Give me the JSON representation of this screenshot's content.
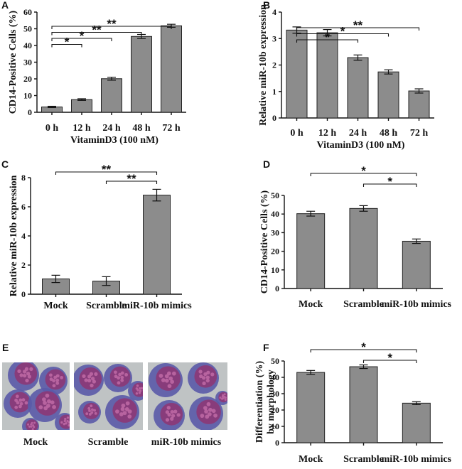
{
  "chart_data": [
    {
      "panel": "A",
      "type": "bar",
      "categories": [
        "0 h",
        "12 h",
        "24 h",
        "48 h",
        "72 h"
      ],
      "values": [
        3.2,
        7.6,
        20.1,
        45.4,
        51.8
      ],
      "errors": [
        0.4,
        0.5,
        0.9,
        1.2,
        0.9
      ],
      "ylabel": "CD14-Positive Cells (%)",
      "xlabel": "VitaminD3 (100 nM)",
      "ylim": [
        0,
        60
      ],
      "yticks": [
        0,
        10,
        20,
        30,
        40,
        50,
        60
      ],
      "annotations": [
        {
          "from": 0,
          "to": 1,
          "label": "*"
        },
        {
          "from": 0,
          "to": 2,
          "label": "*"
        },
        {
          "from": 0,
          "to": 3,
          "label": "**"
        },
        {
          "from": 0,
          "to": 4,
          "label": "**"
        }
      ]
    },
    {
      "panel": "B",
      "type": "bar",
      "categories": [
        "0 h",
        "12 h",
        "24 h",
        "48 h",
        "72 h"
      ],
      "values": [
        3.32,
        3.22,
        2.28,
        1.74,
        1.02
      ],
      "errors": [
        0.12,
        0.12,
        0.1,
        0.08,
        0.08
      ],
      "ylabel": "Relative miR-10b expression",
      "xlabel": "VitaminD3 (100 nM)",
      "ylim": [
        0,
        4
      ],
      "yticks": [
        0,
        1,
        2,
        3,
        4
      ],
      "annotations": [
        {
          "from": 0,
          "to": 2,
          "label": "*"
        },
        {
          "from": 0,
          "to": 3,
          "label": "*"
        },
        {
          "from": 0,
          "to": 4,
          "label": "**"
        }
      ]
    },
    {
      "panel": "C",
      "type": "bar",
      "categories": [
        "Mock",
        "Scramble",
        "miR-10b mimics"
      ],
      "values": [
        1.05,
        0.9,
        6.8
      ],
      "errors": [
        0.25,
        0.3,
        0.4
      ],
      "ylabel": "Relative miR-10b expression",
      "xlabel": "",
      "ylim": [
        0,
        8
      ],
      "yticks": [
        0,
        2,
        4,
        6,
        8
      ],
      "annotations": [
        {
          "from": 0,
          "to": 2,
          "label": "**"
        },
        {
          "from": 1,
          "to": 2,
          "label": "**"
        }
      ]
    },
    {
      "panel": "D",
      "type": "bar",
      "categories": [
        "Mock",
        "Scramble",
        "miR-10b mimics"
      ],
      "values": [
        40.2,
        43.0,
        25.4
      ],
      "errors": [
        1.3,
        1.5,
        1.2
      ],
      "ylabel": "CD14-Positive Cells (%)",
      "xlabel": "",
      "ylim": [
        0,
        50
      ],
      "yticks": [
        0,
        10,
        20,
        30,
        40,
        50
      ],
      "annotations": [
        {
          "from": 0,
          "to": 2,
          "label": "*"
        },
        {
          "from": 1,
          "to": 2,
          "label": "*"
        }
      ]
    },
    {
      "panel": "F",
      "type": "bar",
      "categories": [
        "Mock",
        "Scramble",
        "miR-10b mimics"
      ],
      "values": [
        43.0,
        46.5,
        24.2
      ],
      "errors": [
        1.2,
        1.1,
        0.9
      ],
      "ylabel": "Differentiation (%) by morphology",
      "ylabel_lines": [
        "Differentiation (%)",
        "by morphology"
      ],
      "xlabel": "",
      "ylim": [
        0,
        50
      ],
      "yticks": [
        0,
        10,
        20,
        30,
        40,
        50
      ],
      "annotations": [
        {
          "from": 0,
          "to": 2,
          "label": "*"
        },
        {
          "from": 1,
          "to": 2,
          "label": "*"
        }
      ]
    }
  ],
  "panel_e": {
    "letter": "E",
    "labels": [
      "Mock",
      "Scramble",
      "miR-10b mimics"
    ]
  },
  "colors": {
    "bar": "#8c8c8c",
    "photo_bg": "#bfc3c4",
    "cell_blue": "#5a5aa8",
    "cell_purple": "#8a3a78",
    "cell_pink": "#c06aa6"
  }
}
